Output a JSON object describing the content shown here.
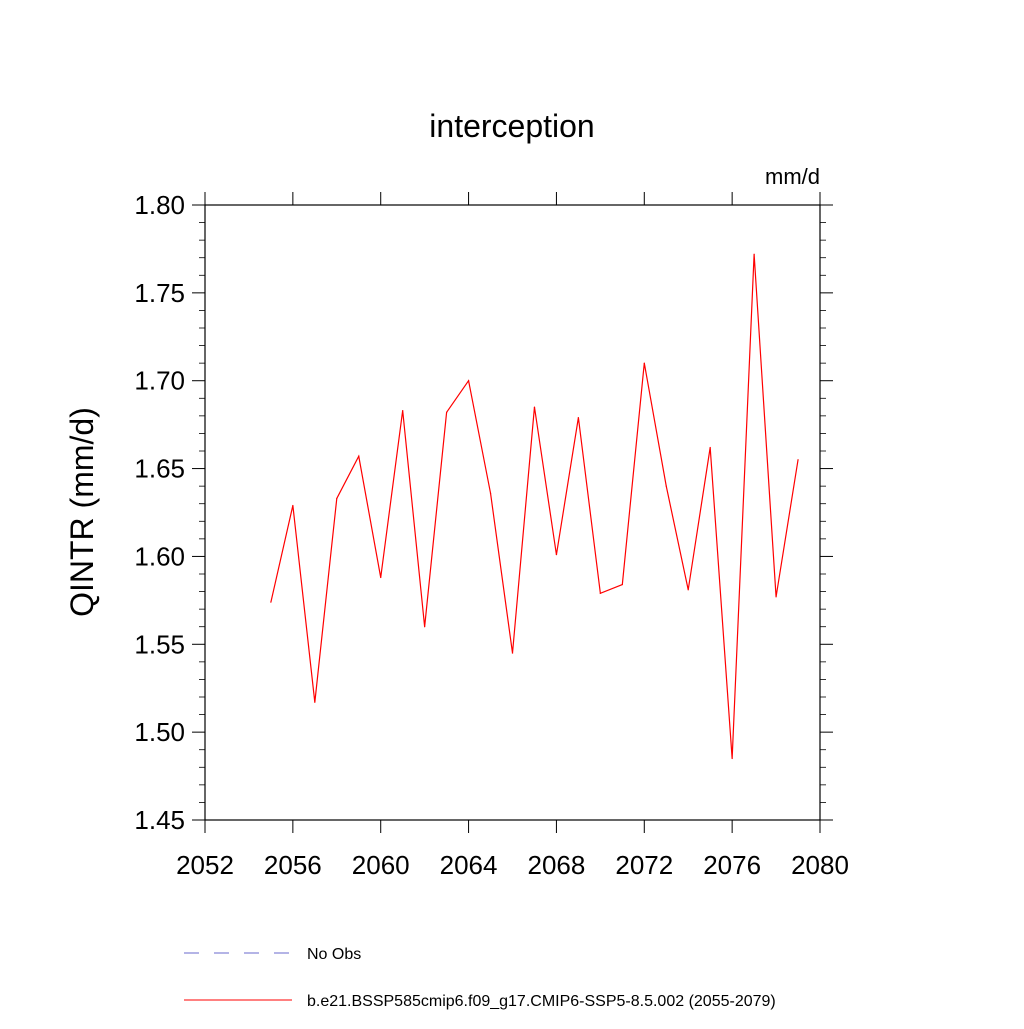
{
  "chart_data": {
    "type": "line",
    "title": "interception",
    "units_label": "mm/d",
    "ylabel": "QINTR  (mm/d)",
    "xlabel": "",
    "xlim": [
      2052,
      2080
    ],
    "ylim": [
      1.45,
      1.8
    ],
    "x_ticks": [
      2052,
      2056,
      2060,
      2064,
      2068,
      2072,
      2076,
      2080
    ],
    "y_ticks": [
      "1.45",
      "1.50",
      "1.55",
      "1.60",
      "1.65",
      "1.70",
      "1.75",
      "1.80"
    ],
    "grid": false,
    "series": [
      {
        "name": "b.e21.BSSP585cmip6.f09_g17.CMIP6-SSP5-8.5.002 (2055-2079)",
        "color": "#ff0000",
        "dash": "solid",
        "x": [
          2055,
          2056,
          2057,
          2058,
          2059,
          2060,
          2061,
          2062,
          2063,
          2064,
          2065,
          2066,
          2067,
          2068,
          2069,
          2070,
          2071,
          2072,
          2073,
          2074,
          2075,
          2076,
          2077,
          2078,
          2079
        ],
        "values": [
          1.574,
          1.629,
          1.517,
          1.633,
          1.657,
          1.588,
          1.683,
          1.56,
          1.682,
          1.7,
          1.636,
          1.545,
          1.685,
          1.601,
          1.679,
          1.579,
          1.584,
          1.71,
          1.64,
          1.581,
          1.662,
          1.485,
          1.772,
          1.577,
          1.655
        ]
      }
    ],
    "legend": {
      "placement": "bottom-left",
      "entries": [
        {
          "label": "No Obs",
          "color": "#6a6acd",
          "dash": "dashed"
        },
        {
          "label": "b.e21.BSSP585cmip6.f09_g17.CMIP6-SSP5-8.5.002 (2055-2079)",
          "color": "#ff0000",
          "dash": "solid"
        }
      ]
    }
  }
}
